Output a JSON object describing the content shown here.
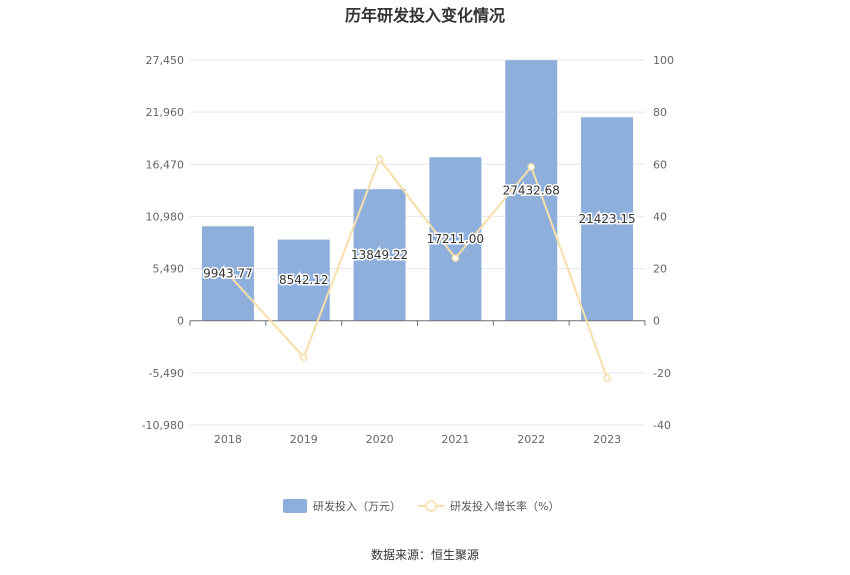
{
  "chart_data": {
    "type": "bar",
    "title": "历年研发投入变化情况",
    "categories": [
      "2018",
      "2019",
      "2020",
      "2021",
      "2022",
      "2023"
    ],
    "series": [
      {
        "name": "研发投入（万元）",
        "type": "bar",
        "axis": "left",
        "color": "#8eaedc",
        "values": [
          9943.77,
          8542.12,
          13849.22,
          17211.0,
          27432.68,
          21423.15
        ],
        "labels": [
          "9943.77",
          "8542.12",
          "13849.22",
          "17211.00",
          "27432.68",
          "21423.15"
        ]
      },
      {
        "name": "研发投入增长率（%）",
        "type": "line",
        "axis": "right",
        "color": "#f8dfa9",
        "values": [
          18,
          -14,
          62,
          24,
          59,
          -22
        ]
      }
    ],
    "y_left": {
      "ylim": [
        -10980,
        27450
      ],
      "ticks": [
        -10980,
        -5490,
        0,
        5490,
        10980,
        16470,
        21960,
        27450
      ],
      "tick_labels": [
        "-10,980",
        "-5,490",
        "0",
        "5,490",
        "10,980",
        "16,470",
        "21,960",
        "27,450"
      ]
    },
    "y_right": {
      "ylim": [
        -40,
        100
      ],
      "ticks": [
        -40,
        -20,
        0,
        20,
        40,
        60,
        80,
        100
      ],
      "tick_labels": [
        "-40",
        "-20",
        "0",
        "20",
        "40",
        "60",
        "80",
        "100"
      ]
    },
    "grid": true,
    "legend_position": "bottom-center",
    "source": "数据来源：恒生聚源"
  }
}
